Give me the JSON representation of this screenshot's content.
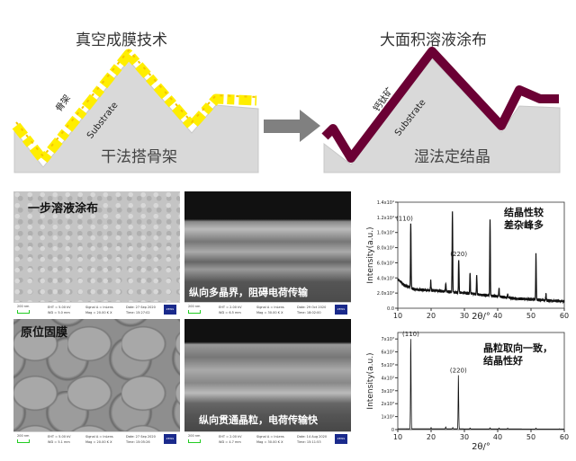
{
  "left_diagram": {
    "title": "真空成膜技术",
    "film_label": "骨架",
    "substrate_label": "Substrate",
    "caption": "干法搭骨架",
    "film_color": "#ffee00",
    "substrate_color": "#d9d9d9"
  },
  "arrow": {
    "color": "#808080"
  },
  "right_diagram": {
    "title": "大面积溶液涂布",
    "film_label": "钙钛矿",
    "substrate_label": "Substrate",
    "caption": "湿法定结晶",
    "film_color": "#6b0034",
    "substrate_color": "#d9d9d9"
  },
  "sem": {
    "top_label": "一步溶液涂布",
    "bottom_label": "原位固膜",
    "cross_top_label": "纵向多晶界，阻碍电荷传输",
    "cross_bottom_label": "纵向贯通晶粒，电荷传输快",
    "info": [
      {
        "scale": "200 nm",
        "eht": "EHT = 5.00 kV",
        "wd": "WD = 5.0 mm",
        "signal": "Signal A = InLens",
        "mag": "Mag = 20.00 K X",
        "date": "Date: 27 Sep 2020",
        "time": "Time: 15:27:02",
        "logo": "ZEISS"
      },
      {
        "scale": "200 nm",
        "eht": "EHT = 2.00 kV",
        "wd": "WD = 6.5 mm",
        "signal": "Signal A = InLens",
        "mag": "Mag = 30.00 K X",
        "date": "Date: 29 Oct 2020",
        "time": "Time: 18:02:00",
        "logo": "ZEISS"
      },
      {
        "scale": "200 nm",
        "eht": "EHT = 5.00 kV",
        "wd": "WD = 5.1 mm",
        "signal": "Signal A = InLens",
        "mag": "Mag = 20.00 K X",
        "date": "Date: 27 Sep 2020",
        "time": "Time: 15:05:26",
        "logo": "ZEISS"
      },
      {
        "scale": "200 nm",
        "eht": "EHT = 2.00 kV",
        "wd": "WD = 4.7 mm",
        "signal": "Signal A = InLens",
        "mag": "Mag = 30.00 K X",
        "date": "Date: 14 Aug 2020",
        "time": "Time: 15:11:53",
        "logo": "ZEISS"
      }
    ]
  },
  "chart_data": [
    {
      "type": "line",
      "xlabel": "2θ/°",
      "ylabel": "Intensity(a.u.)",
      "xlim": [
        10,
        60
      ],
      "ylim": [
        0,
        14000
      ],
      "xticks": [
        "10",
        "20",
        "30",
        "40",
        "50",
        "60"
      ],
      "yticks": [
        "0.0",
        "2.0x10³",
        "4.0x10³",
        "6.0x10³",
        "8.0x10³",
        "1.0x10⁴",
        "1.2x10⁴",
        "1.4x10⁴"
      ],
      "ytick_values": [
        0,
        2000,
        4000,
        6000,
        8000,
        10000,
        12000,
        14000
      ],
      "annotation": [
        "结晶性较",
        "差杂峰多"
      ],
      "baseline": [
        [
          10,
          3800
        ],
        [
          12,
          3000
        ],
        [
          15,
          2500
        ],
        [
          25,
          2200
        ],
        [
          35,
          1800
        ],
        [
          45,
          1300
        ],
        [
          60,
          900
        ]
      ],
      "peaks": [
        {
          "x": 13.9,
          "y": 11200,
          "label": "(110)"
        },
        {
          "x": 19.9,
          "y": 3600
        },
        {
          "x": 24.4,
          "y": 3300
        },
        {
          "x": 26.4,
          "y": 12700
        },
        {
          "x": 28.3,
          "y": 6500,
          "label": "(220)"
        },
        {
          "x": 31.7,
          "y": 4700
        },
        {
          "x": 33.7,
          "y": 4300
        },
        {
          "x": 37.7,
          "y": 11700
        },
        {
          "x": 40.4,
          "y": 2700
        },
        {
          "x": 43.0,
          "y": 1900
        },
        {
          "x": 51.5,
          "y": 7200
        },
        {
          "x": 54.5,
          "y": 1900
        }
      ]
    },
    {
      "type": "line",
      "xlabel": "2θ/°",
      "ylabel": "Intensity(a.u.)",
      "xlim": [
        10,
        60
      ],
      "ylim": [
        0,
        7500
      ],
      "xticks": [
        "10",
        "20",
        "30",
        "40",
        "50",
        "60"
      ],
      "yticks": [
        "0",
        "1x10³",
        "2x10³",
        "3x10³",
        "4x10³",
        "5x10³",
        "6x10³",
        "7x10³"
      ],
      "ytick_values": [
        0,
        1000,
        2000,
        3000,
        4000,
        5000,
        6000,
        7000
      ],
      "annotation": [
        "晶粒取向一致，",
        "结晶性好"
      ],
      "baseline": [
        [
          10,
          60
        ],
        [
          60,
          40
        ]
      ],
      "peaks": [
        {
          "x": 13.9,
          "y": 7000,
          "label": "(110)"
        },
        {
          "x": 20.0,
          "y": 150
        },
        {
          "x": 24.4,
          "y": 200
        },
        {
          "x": 26.5,
          "y": 150
        },
        {
          "x": 28.2,
          "y": 4200,
          "label": "(220)"
        },
        {
          "x": 31.7,
          "y": 120
        },
        {
          "x": 37.7,
          "y": 130
        },
        {
          "x": 40.4,
          "y": 120
        },
        {
          "x": 43.0,
          "y": 110
        },
        {
          "x": 51.5,
          "y": 120
        },
        {
          "x": 58.5,
          "y": 60
        }
      ]
    }
  ]
}
